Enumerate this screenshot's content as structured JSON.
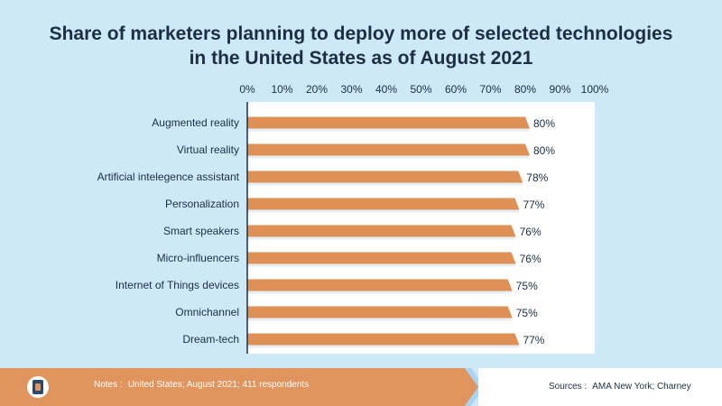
{
  "chart_data": {
    "type": "bar",
    "orientation": "horizontal",
    "title_line1": "Share of marketers planning to deploy more of selected technologies",
    "title_line2": "in the United States as of August 2021",
    "categories": [
      "Augmented reality",
      "Virtual reality",
      "Artificial intelegence assistant",
      "Personalization",
      "Smart speakers",
      "Micro-influencers",
      "Internet of Things devices",
      "Omnichannel",
      "Dream-tech"
    ],
    "values": [
      80,
      80,
      78,
      77,
      76,
      76,
      75,
      75,
      77
    ],
    "value_labels": [
      "80%",
      "80%",
      "78%",
      "77%",
      "76%",
      "76%",
      "75%",
      "75%",
      "77%"
    ],
    "xlim": [
      0,
      100
    ],
    "xticks": [
      0,
      10,
      20,
      30,
      40,
      50,
      60,
      70,
      80,
      90,
      100
    ],
    "xtick_labels": [
      "0%",
      "10%",
      "20%",
      "30%",
      "40%",
      "50%",
      "60%",
      "70%",
      "80%",
      "90%",
      "100%"
    ],
    "axis_position": "top",
    "grid": false
  },
  "footer": {
    "notes_label": "Notes :",
    "notes_text": "United States; August 2021; 411 respondents",
    "sources_label": "Sources :",
    "sources_text": "AMA New York; Charney"
  },
  "colors": {
    "background": "#cde8f6",
    "bar": "#df9155",
    "bar_shadow": "#ffffff",
    "plot_area": "#ffffff",
    "text": "#1c2e44",
    "axis": "#1c2e44",
    "footer_accent": "#e0955e"
  }
}
